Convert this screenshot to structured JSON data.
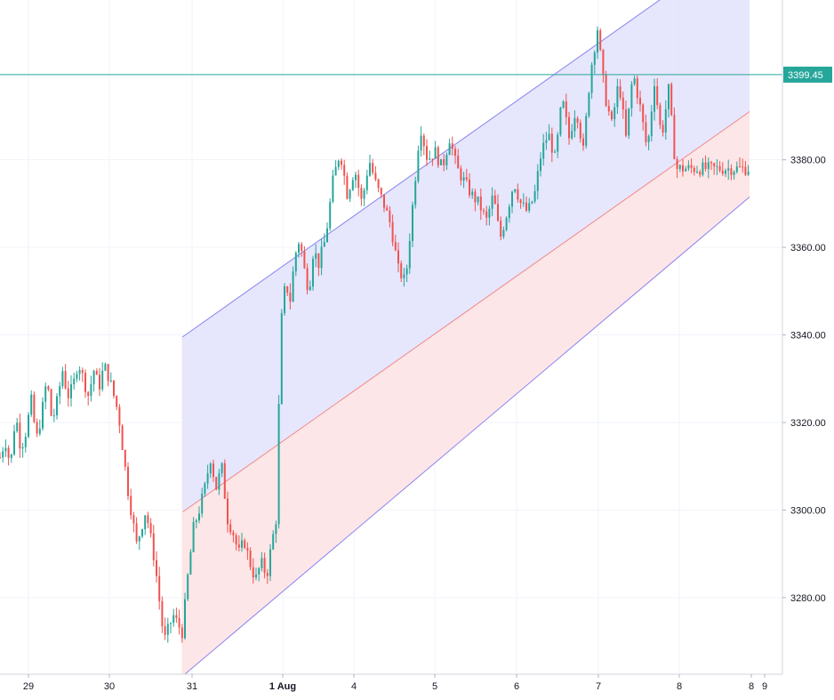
{
  "chart_data": {
    "type": "candlestick",
    "title": "",
    "xlabel": "",
    "ylabel": "",
    "ylim": [
      3262.5,
      3416.5
    ],
    "x_tick_labels": [
      "29",
      "30",
      "31",
      "1 Aug",
      "4",
      "5",
      "6",
      "7",
      "8",
      "8",
      "9"
    ],
    "y_tick_labels": [
      "3280.00",
      "3300.00",
      "3320.00",
      "3340.00",
      "3360.00",
      "3380.00"
    ],
    "y_ticks": [
      3280,
      3300,
      3320,
      3340,
      3360,
      3380
    ],
    "grid": true,
    "last_price": {
      "value": 3399.45,
      "label": "3399.45"
    },
    "colors": {
      "up": "#26a69a",
      "down": "#ef5350",
      "price_line": "#26a69a",
      "channel_upper_fill": "#e2e2fb",
      "channel_lower_fill": "#fde2e3",
      "channel_line_blue": "#8a84f0",
      "channel_line_red": "#f08a8a",
      "grid": "#f0f3fa",
      "axis_text": "#131722"
    },
    "channel": {
      "start_date": "31",
      "upper": [
        3339.5,
        3431
      ],
      "middle": [
        3299.5,
        3391
      ],
      "lower": [
        3262,
        3371.5
      ]
    },
    "price_path": [
      [
        3312,
        3316,
        3310,
        3322,
        3314,
        3318,
        3325,
        3316,
        3322,
        3330,
        3320,
        3325,
        3332,
        3326,
        3328,
        3334,
        3330,
        3326,
        3332,
        3328,
        3333,
        3330
      ],
      [
        3330,
        3322,
        3305,
        3292,
        3300,
        3288,
        3270,
        3276,
        3272
      ],
      [
        3272,
        3285,
        3296,
        3300,
        3305,
        3312,
        3305,
        3310,
        3298,
        3295,
        3290,
        3293,
        3288,
        3284,
        3288,
        3285
      ],
      [
        3285,
        3292,
        3298,
        3342,
        3352,
        3348,
        3358,
        3362,
        3355,
        3350,
        3360,
        3356
      ],
      [
        3356,
        3362,
        3375,
        3382,
        3372,
        3378,
        3370,
        3380,
        3374,
        3370,
        3365,
        3355,
        3352
      ],
      [
        3352,
        3370,
        3388,
        3380,
        3382,
        3378,
        3385,
        3378,
        3375,
        3372,
        3370,
        3366
      ],
      [
        3366,
        3372,
        3362,
        3368,
        3375,
        3370,
        3368,
        3372,
        3382,
        3386,
        3380,
        3394,
        3385
      ],
      [
        3385,
        3392,
        3382,
        3400,
        3410,
        3395,
        3388,
        3398,
        3385,
        3400,
        3392,
        3382,
        3398,
        3385,
        3396,
        3378
      ]
    ]
  }
}
